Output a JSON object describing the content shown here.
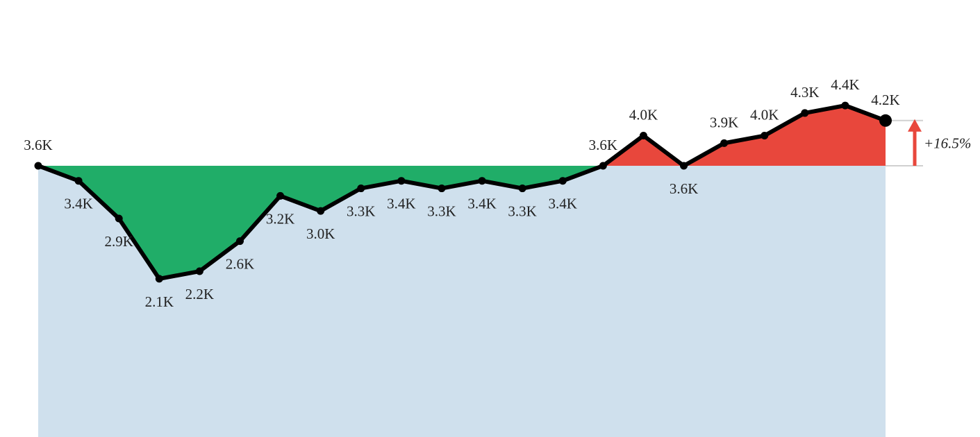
{
  "chart_data": {
    "type": "line",
    "title": "",
    "xlabel": "",
    "ylabel": "",
    "baseline_value": 3.6,
    "ylim": [
      0,
      5.8
    ],
    "colors": {
      "below_baseline": "#20ad68",
      "above_baseline": "#e8473c",
      "background_area": "#cfe0ed",
      "line": "#000000",
      "baseline_rule": "#d0d0d0",
      "change_arrow": "#e8473c"
    },
    "series": [
      {
        "values": [
          3.6,
          3.4,
          2.9,
          2.1,
          2.2,
          2.6,
          3.2,
          3.0,
          3.3,
          3.4,
          3.3,
          3.4,
          3.3,
          3.4,
          3.6,
          4.0,
          3.6,
          3.9,
          4.0,
          4.3,
          4.4,
          4.2
        ],
        "labels": [
          "3.6K",
          "3.4K",
          "2.9K",
          "2.1K",
          "2.2K",
          "2.6K",
          "3.2K",
          "3.0K",
          "3.3K",
          "3.4K",
          "3.3K",
          "3.4K",
          "3.3K",
          "3.4K",
          "3.6K",
          "4.0K",
          "3.6K",
          "3.9K",
          "4.0K",
          "4.3K",
          "4.4K",
          "4.2K"
        ],
        "label_position": [
          "above",
          "below",
          "below",
          "below",
          "below",
          "below",
          "below",
          "below",
          "below",
          "below",
          "below",
          "below",
          "below",
          "below",
          "above",
          "above",
          "below",
          "above",
          "above",
          "above",
          "above",
          "above"
        ]
      }
    ],
    "change_label": "+16.5%",
    "change_direction": "up"
  }
}
